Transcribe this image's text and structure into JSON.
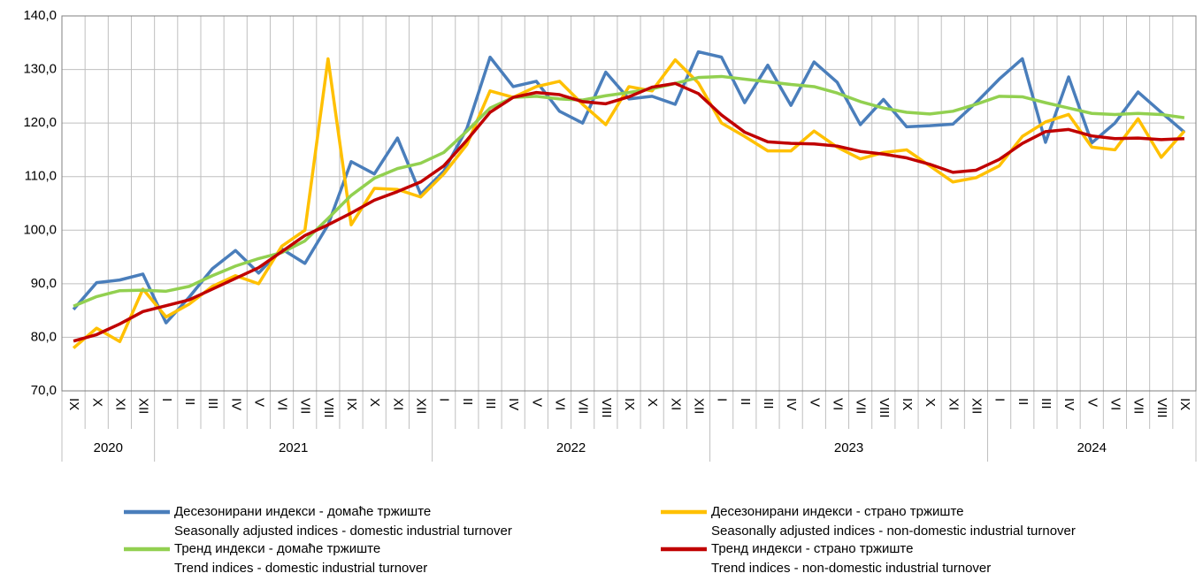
{
  "chart_data": {
    "type": "line",
    "groups": [
      {
        "label": "2020",
        "categories": [
          "IX",
          "X",
          "XI",
          "XII"
        ]
      },
      {
        "label": "2021",
        "categories": [
          "I",
          "II",
          "III",
          "IV",
          "V",
          "VI",
          "VII",
          "VIII",
          "IX",
          "X",
          "XI",
          "XII"
        ]
      },
      {
        "label": "2022",
        "categories": [
          "I",
          "II",
          "III",
          "IV",
          "V",
          "VI",
          "VII",
          "VIII",
          "IX",
          "X",
          "XI",
          "XII"
        ]
      },
      {
        "label": "2023",
        "categories": [
          "I",
          "II",
          "III",
          "IV",
          "V",
          "VI",
          "VII",
          "VIII",
          "IX",
          "X",
          "XI",
          "XII"
        ]
      },
      {
        "label": "2024",
        "categories": [
          "I",
          "II",
          "III",
          "IV",
          "V",
          "VI",
          "VII",
          "VIII",
          "IX"
        ]
      }
    ],
    "ylim": [
      70,
      140
    ],
    "yticks": [
      {
        "value": 70,
        "label": "70,0"
      },
      {
        "value": 80,
        "label": "80,0"
      },
      {
        "value": 90,
        "label": "90,0"
      },
      {
        "value": 100,
        "label": "100,0"
      },
      {
        "value": 110,
        "label": "110,0"
      },
      {
        "value": 120,
        "label": "120,0"
      },
      {
        "value": 130,
        "label": "130,0"
      },
      {
        "value": 140,
        "label": "140,0"
      }
    ],
    "grid": true,
    "series": [
      {
        "name": "Десезонирани индекси - домаће тржиште",
        "name_en": "Seasonally adjusted indices - domestic industrial turnover",
        "color": "#4a7ebb",
        "values": [
          85.2,
          90.2,
          90.7,
          91.8,
          82.7,
          87.5,
          92.8,
          96.2,
          92.0,
          96.5,
          93.8,
          101,
          112.8,
          110.5,
          117.2,
          106.7,
          111,
          119,
          132.3,
          126.8,
          127.8,
          122.2,
          120,
          129.5,
          124.5,
          125,
          123.5,
          133.3,
          132.3,
          123.8,
          130.8,
          123.3,
          131.4,
          127.6,
          119.7,
          124.4,
          119.3,
          119.5,
          119.8,
          123.8,
          128.2,
          132,
          116.4,
          128.6,
          116.3,
          120,
          125.8,
          122,
          118.3
        ]
      },
      {
        "name": "Десезонирани индекси - страно тржиште",
        "name_en": "Seasonally adjusted indices - non-domestic industrial turnover",
        "color": "#ffc000",
        "values": [
          78,
          81.7,
          79.2,
          89.0,
          83.8,
          86.2,
          89.5,
          91.5,
          90.0,
          97.0,
          100,
          132,
          101,
          107.8,
          107.6,
          106.2,
          110.5,
          116,
          126,
          124.8,
          126.8,
          127.8,
          123.5,
          119.7,
          126.8,
          126,
          131.8,
          127.5,
          120,
          117.5,
          114.8,
          114.8,
          118.5,
          115.5,
          113.3,
          114.5,
          115,
          112,
          109,
          109.8,
          112,
          117.5,
          120.2,
          121.6,
          115.5,
          115,
          120.8,
          113.6,
          118.5
        ]
      },
      {
        "name": "Тренд индекси - домаће тржиште",
        "name_en": "Trend indices - domestic industrial turnover",
        "color": "#92d050",
        "values": [
          85.8,
          87.6,
          88.7,
          88.8,
          88.6,
          89.5,
          91.5,
          93.3,
          94.7,
          95.8,
          98,
          102.2,
          106.5,
          109.7,
          111.5,
          112.5,
          114.5,
          118.5,
          122.8,
          124.8,
          125,
          124.5,
          124.3,
          125.1,
          125.7,
          126.4,
          127.4,
          128.5,
          128.7,
          128.2,
          127.7,
          127.2,
          126.8,
          125.6,
          124,
          122.8,
          122,
          121.7,
          122.2,
          123.5,
          125,
          124.9,
          123.8,
          122.8,
          121.8,
          121.6,
          121.8,
          121.6,
          121.0
        ]
      },
      {
        "name": "Тренд индекси - страно тржиште",
        "name_en": "Trend indices - non-domestic industrial turnover",
        "color": "#c00000",
        "values": [
          79.3,
          80.5,
          82.5,
          84.8,
          85.9,
          87.0,
          89.0,
          91.0,
          93,
          96,
          99,
          101,
          103.2,
          105.6,
          107.2,
          109,
          112,
          116.8,
          122,
          124.8,
          125.7,
          125.3,
          124,
          123.6,
          124.9,
          126.7,
          127.4,
          125.5,
          121.5,
          118.3,
          116.5,
          116.2,
          116.1,
          115.7,
          114.7,
          114.2,
          113.5,
          112.3,
          110.8,
          111.2,
          113.2,
          116.2,
          118.4,
          118.8,
          117.6,
          117.1,
          117.2,
          116.9,
          117.1
        ]
      }
    ]
  }
}
